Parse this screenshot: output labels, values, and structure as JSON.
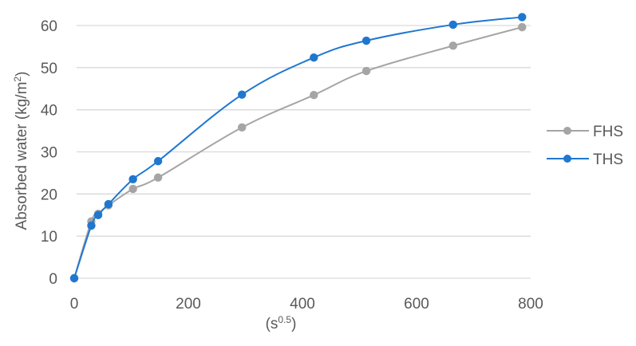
{
  "chart_data": {
    "type": "line",
    "title": "",
    "xlabel": "(s^0.5)",
    "xlabel_parts": {
      "base": "(s",
      "sup": "0.5",
      "close": ")"
    },
    "ylabel": "Absorbed water (kg/m²)",
    "ylabel_parts": {
      "base": "Absorbed water (kg/m",
      "sup": "2",
      "close": ")"
    },
    "xlim": [
      0,
      800
    ],
    "ylim": [
      0,
      60
    ],
    "x_ticks": [
      0,
      200,
      400,
      600,
      800
    ],
    "y_ticks": [
      0,
      10,
      20,
      30,
      40,
      50,
      60
    ],
    "grid": {
      "horizontal": true,
      "vertical": false
    },
    "legend_position": "right",
    "smooth": true,
    "series": [
      {
        "name": "FHS",
        "color": "#a5a5a5",
        "points": [
          [
            0,
            0
          ],
          [
            30,
            13.5
          ],
          [
            42,
            15.3
          ],
          [
            60,
            17.3
          ],
          [
            103,
            21.2
          ],
          [
            147,
            23.9
          ],
          [
            294,
            35.8
          ],
          [
            420,
            43.5
          ],
          [
            512,
            49.2
          ],
          [
            664,
            55.2
          ],
          [
            785,
            59.6
          ]
        ]
      },
      {
        "name": "THS",
        "color": "#1f77d0",
        "points": [
          [
            0,
            0
          ],
          [
            30,
            12.5
          ],
          [
            42,
            15.0
          ],
          [
            60,
            17.6
          ],
          [
            103,
            23.5
          ],
          [
            147,
            27.8
          ],
          [
            294,
            43.6
          ],
          [
            420,
            52.4
          ],
          [
            512,
            56.4
          ],
          [
            664,
            60.2
          ],
          [
            785,
            62.0
          ]
        ]
      }
    ]
  }
}
